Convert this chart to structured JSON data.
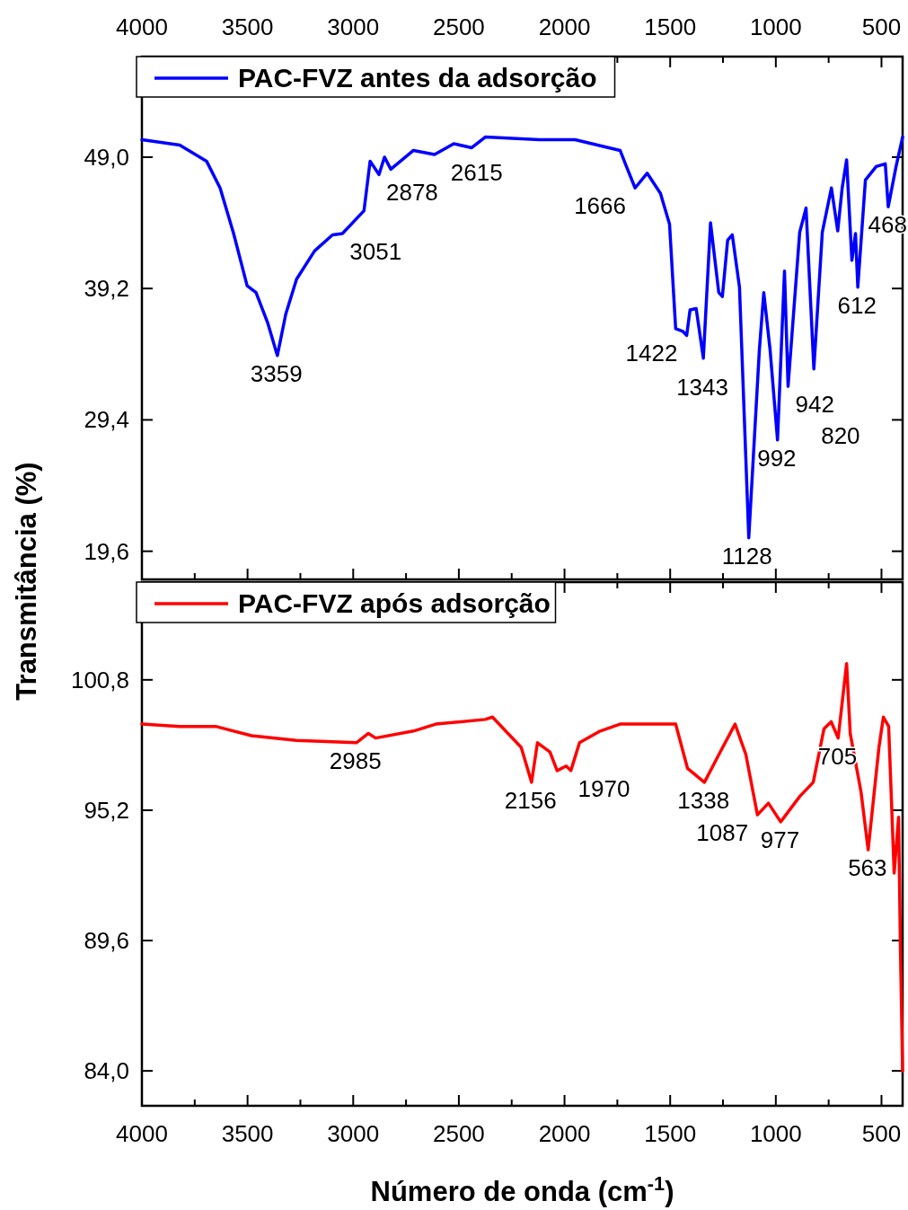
{
  "chart_data": [
    {
      "type": "line",
      "ylabel": "Transmitância (%)",
      "legend": "top left",
      "tick_labels": "y",
      "marker": "none",
      "line_style": "solid",
      "xlim": [
        4000,
        400
      ],
      "xticks": [
        4000,
        3500,
        3000,
        2500,
        2000,
        1500,
        1000,
        500
      ],
      "x2lim": [
        4000,
        400
      ],
      "x2ticks": [
        4000,
        3500,
        3000,
        2500,
        2000,
        1500,
        1000,
        500
      ],
      "ylim": [
        17.5,
        56.5
      ],
      "yticks": [
        {
          "value": 19.6,
          "label": "19,6"
        },
        {
          "value": 29.4,
          "label": "29,4"
        },
        {
          "value": 39.2,
          "label": "39,2"
        },
        {
          "value": 49,
          "label": "49,0"
        }
      ],
      "series": [
        {
          "name": "PAC-FVZ antes da adsorção",
          "color": "#0000ff",
          "x": [
            4000,
            3821,
            3694,
            3630,
            3566,
            3502,
            3460,
            3404,
            3359,
            3319,
            3268,
            3183,
            3098,
            3051,
            2949,
            2920,
            2878,
            2852,
            2822,
            2715,
            2615,
            2524,
            2439,
            2375,
            2120,
            1950,
            1737,
            1707,
            1666,
            1609,
            1546,
            1503,
            1474,
            1440,
            1422,
            1406,
            1377,
            1343,
            1309,
            1270,
            1253,
            1228,
            1206,
            1172,
            1128,
            1078,
            1057,
            1027,
            992,
            959,
            942,
            887,
            857,
            820,
            780,
            737,
            707,
            686,
            665,
            640,
            623,
            612,
            576,
            525,
            482,
            468,
            431,
            400
          ],
          "values": [
            50.3,
            49.9,
            48.7,
            46.7,
            43.3,
            39.4,
            38.9,
            36.6,
            34.2,
            37.3,
            39.9,
            42.0,
            43.2,
            43.3,
            45.0,
            48.7,
            47.7,
            49.0,
            48.1,
            49.5,
            49.2,
            50.0,
            49.7,
            50.5,
            50.3,
            50.3,
            49.5,
            48.3,
            46.7,
            47.8,
            46.3,
            44.0,
            36.2,
            36.0,
            35.7,
            37.6,
            37.7,
            34.0,
            44.1,
            38.9,
            38.6,
            42.8,
            43.2,
            39.3,
            20.6,
            34.6,
            38.9,
            34.6,
            27.9,
            40.5,
            31.9,
            43.4,
            45.2,
            33.2,
            43.4,
            46.7,
            43.5,
            46.7,
            48.8,
            41.3,
            43.3,
            39.3,
            47.3,
            48.3,
            48.5,
            45.3,
            48.3,
            50.5
          ]
        }
      ],
      "annotations": [
        {
          "text": "3359",
          "x": 3359,
          "y": 34.2
        },
        {
          "text": "3051",
          "x": 3051,
          "y": 43.3
        },
        {
          "text": "2878",
          "x": 2878,
          "y": 47.7
        },
        {
          "text": "2615",
          "x": 2615,
          "y": 49.2
        },
        {
          "text": "1666",
          "x": 1666,
          "y": 46.7
        },
        {
          "text": "1422",
          "x": 1422,
          "y": 35.7
        },
        {
          "text": "1343",
          "x": 1343,
          "y": 34.0
        },
        {
          "text": "1128",
          "x": 1128,
          "y": 20.6
        },
        {
          "text": "992",
          "x": 992,
          "y": 27.9
        },
        {
          "text": "942",
          "x": 942,
          "y": 31.9
        },
        {
          "text": "820",
          "x": 820,
          "y": 33.2
        },
        {
          "text": "612",
          "x": 612,
          "y": 39.3
        },
        {
          "text": "468",
          "x": 468,
          "y": 45.3
        }
      ]
    },
    {
      "type": "line",
      "xlabel": "Número de onda (cm$^{-1}$)",
      "legend": "top left",
      "marker": "none",
      "line_style": "solid",
      "xlim": [
        4000,
        400
      ],
      "xticks": [
        4000,
        3500,
        3000,
        2500,
        2000,
        1500,
        1000,
        500
      ],
      "ylim": [
        82.5,
        105
      ],
      "yticks": [
        {
          "value": 84,
          "label": "84,0"
        },
        {
          "value": 89.6,
          "label": "89,6"
        },
        {
          "value": 95.2,
          "label": "95,2"
        },
        {
          "value": 100.8,
          "label": "100,8"
        }
      ],
      "series": [
        {
          "name": "PAC-FVZ após adsorção",
          "color": "#ff0000",
          "x": [
            4000,
            3821,
            3651,
            3481,
            3268,
            2985,
            2928,
            2894,
            2715,
            2609,
            2375,
            2341,
            2205,
            2156,
            2128,
            2069,
            2035,
            1992,
            1970,
            1929,
            1831,
            1737,
            1474,
            1418,
            1338,
            1269,
            1193,
            1142,
            1087,
            1035,
            977,
            886,
            823,
            772,
            738,
            705,
            665,
            648,
            597,
            563,
            512,
            491,
            466,
            440,
            419,
            410,
            400
          ],
          "values": [
            98.9,
            98.8,
            98.8,
            98.4,
            98.2,
            98.1,
            98.5,
            98.3,
            98.6,
            98.9,
            99.1,
            99.2,
            97.9,
            96.4,
            98.1,
            97.7,
            96.9,
            97.1,
            96.9,
            98.1,
            98.6,
            98.9,
            98.9,
            97.0,
            96.4,
            97.6,
            98.9,
            97.6,
            95.0,
            95.5,
            94.7,
            95.8,
            96.4,
            98.7,
            99.0,
            98.3,
            101.5,
            98.5,
            96.0,
            93.5,
            97.9,
            99.2,
            98.8,
            92.5,
            94.9,
            89.1,
            84.0
          ]
        }
      ],
      "annotations": [
        {
          "text": "2985",
          "x": 2985,
          "y": 98.1
        },
        {
          "text": "2156",
          "x": 2156,
          "y": 96.4
        },
        {
          "text": "1970",
          "x": 1970,
          "y": 96.9
        },
        {
          "text": "1338",
          "x": 1338,
          "y": 96.4
        },
        {
          "text": "1087",
          "x": 1087,
          "y": 95.0
        },
        {
          "text": "977",
          "x": 977,
          "y": 94.7
        },
        {
          "text": "705",
          "x": 705,
          "y": 98.3
        },
        {
          "text": "563",
          "x": 563,
          "y": 93.5
        }
      ]
    }
  ]
}
